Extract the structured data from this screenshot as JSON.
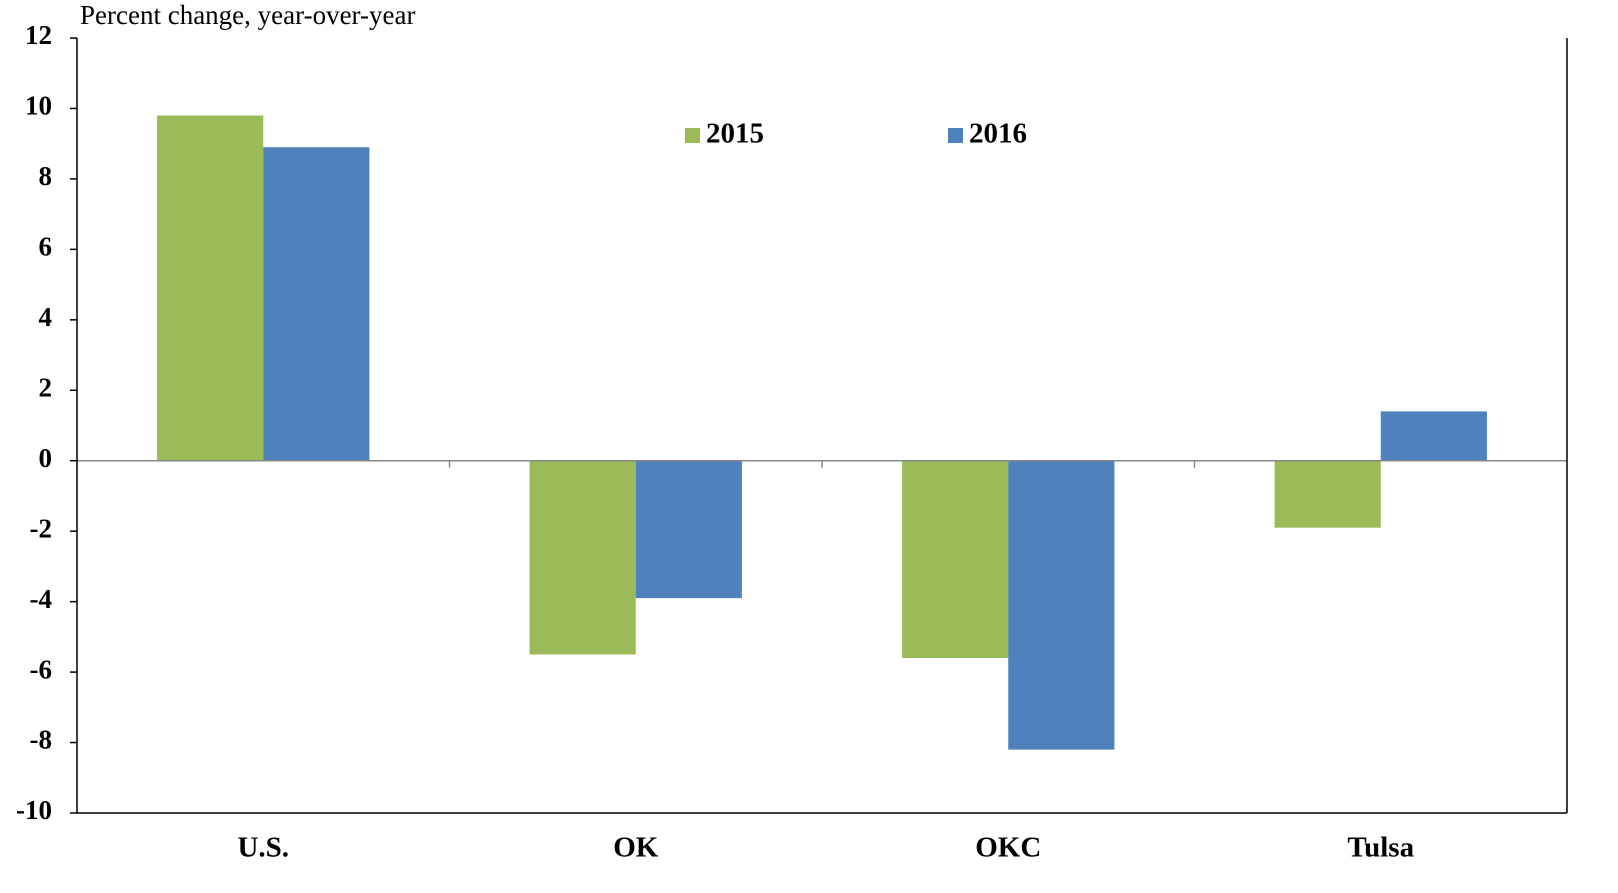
{
  "chart_data": {
    "type": "bar",
    "y_label": "Percent change, year-over-year",
    "categories": [
      "U.S.",
      "OK",
      "OKC",
      "Tulsa"
    ],
    "series": [
      {
        "name": "2015",
        "color": "#9bbb59",
        "values": [
          9.8,
          -5.5,
          -5.6,
          -1.9
        ]
      },
      {
        "name": "2016",
        "color": "#4f81bd",
        "values": [
          8.9,
          -3.9,
          -8.2,
          1.4
        ]
      }
    ],
    "ylim": [
      -10,
      12
    ],
    "yticks": [
      -10,
      -8,
      -6,
      -4,
      -2,
      0,
      2,
      4,
      6,
      8,
      10,
      12
    ],
    "grid": false,
    "legend": "top"
  }
}
